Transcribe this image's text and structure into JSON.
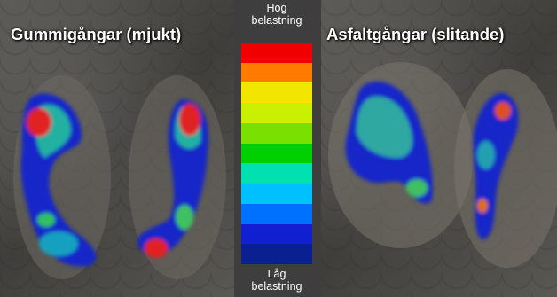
{
  "left_caption": "Gummigångar (mjukt)",
  "right_caption": "Asfaltgångar (slitande)",
  "legend": {
    "top_line1": "Hög",
    "top_line2": "belastning",
    "bottom_line1": "Låg",
    "bottom_line2": "belastning",
    "colors": [
      "#f00000",
      "#ff7a00",
      "#f2e600",
      "#c8f000",
      "#7ae000",
      "#00d000",
      "#00e0b0",
      "#00c0ff",
      "#0070ff",
      "#1020d0",
      "#0a2090"
    ]
  }
}
